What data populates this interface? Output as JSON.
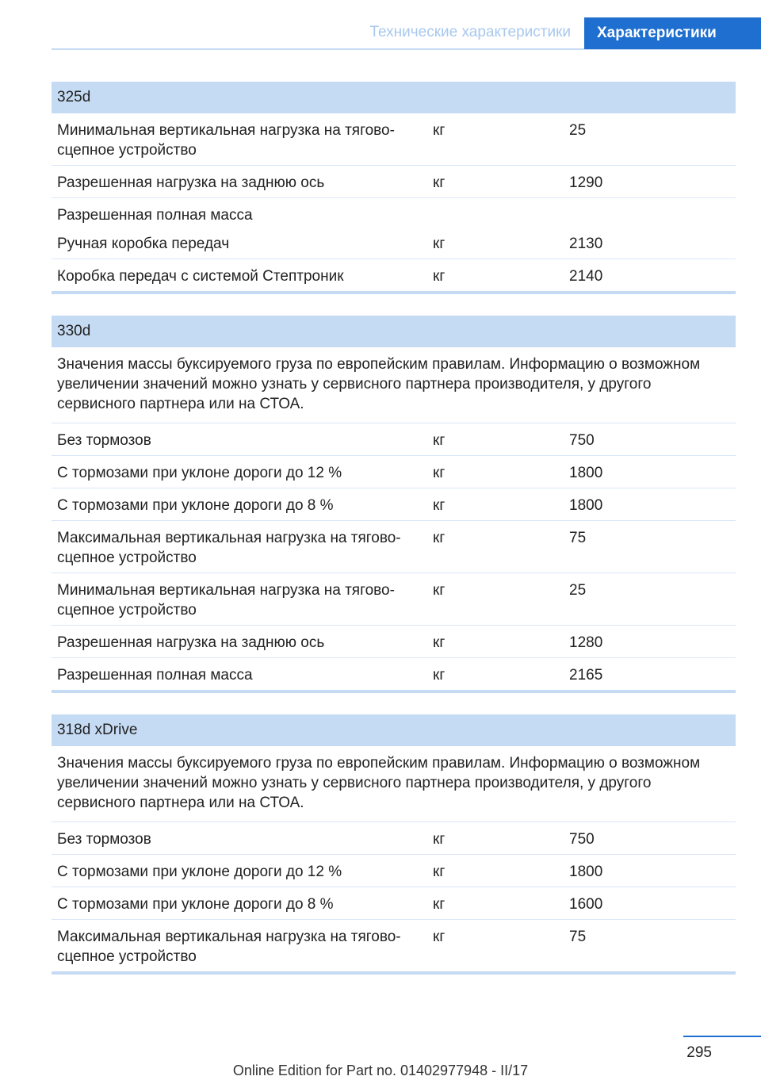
{
  "header": {
    "section": "Технические характеристики",
    "chapter": "Характеристики"
  },
  "tables": [
    {
      "title": "325d",
      "rows": [
        {
          "label": "Минимальная вертикальная нагрузка на тягово-сцепное устройство",
          "unit": "кг",
          "value": 25
        },
        {
          "label": "Разрешенная нагрузка на заднюю ось",
          "unit": "кг",
          "value": 1290
        },
        {
          "label": "Разрешенная полная масса"
        },
        {
          "label": "Ручная коробка передач",
          "unit": "кг",
          "value": 2130
        },
        {
          "label": "Коробка передач с системой Стептроник",
          "unit": "кг",
          "value": 2140
        }
      ]
    },
    {
      "title": "330d",
      "note": "Значения массы буксируемого груза по европейским правилам. Информацию о возможном увеличении значений можно узнать у сервисного партнера производителя, у другого сервисного партнера или на СТОА.",
      "rows": [
        {
          "label": "Без тормозов",
          "unit": "кг",
          "value": 750
        },
        {
          "label": "С тормозами при уклоне дороги до 12 %",
          "unit": "кг",
          "value": 1800
        },
        {
          "label": "С тормозами при уклоне дороги до 8 %",
          "unit": "кг",
          "value": 1800
        },
        {
          "label": "Максимальная вертикальная нагрузка на тягово-сцепное устройство",
          "unit": "кг",
          "value": 75
        },
        {
          "label": "Минимальная вертикальная нагрузка на тягово-сцепное устройство",
          "unit": "кг",
          "value": 25
        },
        {
          "label": "Разрешенная нагрузка на заднюю ось",
          "unit": "кг",
          "value": 1280
        },
        {
          "label": "Разрешенная полная масса",
          "unit": "кг",
          "value": 2165
        }
      ]
    },
    {
      "title": "318d xDrive",
      "note": "Значения массы буксируемого груза по европейским правилам. Информацию о возможном увеличении значений можно узнать у сервисного партнера производителя, у другого сервисного партнера или на СТОА.",
      "rows": [
        {
          "label": "Без тормозов",
          "unit": "кг",
          "value": 750
        },
        {
          "label": "С тормозами при уклоне дороги до 12 %",
          "unit": "кг",
          "value": 1800
        },
        {
          "label": "С тормозами при уклоне дороги до 8 %",
          "unit": "кг",
          "value": 1600
        },
        {
          "label": "Максимальная вертикальная нагрузка на тягово-сцепное устройство",
          "unit": "кг",
          "value": 75
        }
      ]
    }
  ],
  "footer": {
    "page": "295",
    "edition": "Online Edition for Part no. 01402977948 - II/17"
  }
}
